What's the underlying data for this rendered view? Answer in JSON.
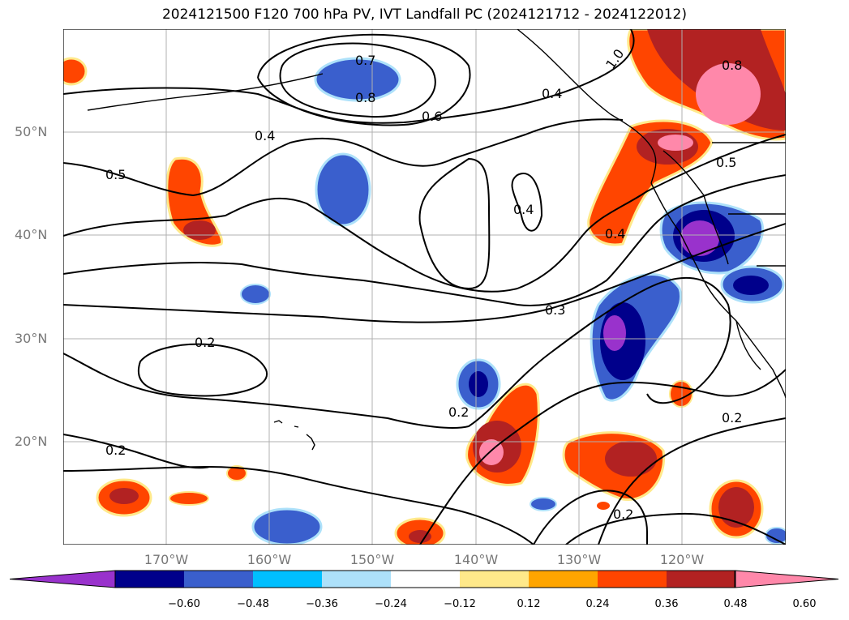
{
  "title": "2024121500 F120 700 hPa PV, IVT Landfall PC (2024121712 - 2024122012)",
  "map": {
    "lat_labels": [
      "50°N",
      "40°N",
      "30°N",
      "20°N"
    ],
    "lon_labels": [
      "170°W",
      "160°W",
      "150°W",
      "140°W",
      "130°W",
      "120°W"
    ],
    "contour_labels": [
      "0.7",
      "0.8",
      "0.6",
      "1.0",
      "0.8",
      "0.4",
      "0.5",
      "0.4",
      "0.4",
      "0.5",
      "0.4",
      "0.3",
      "0.2",
      "0.2",
      "0.2",
      "0.2",
      "0.2"
    ]
  },
  "colorbar": {
    "tick_labels": [
      "−0.60",
      "−0.48",
      "−0.36",
      "−0.24",
      "−0.12",
      "0.12",
      "0.24",
      "0.36",
      "0.48",
      "0.60"
    ],
    "colors": [
      "#9932CC",
      "#00008B",
      "#3A5FCD",
      "#00BFFF",
      "#ADE1FA",
      "#FFFFFF",
      "#FFE98A",
      "#FFA500",
      "#FF4500",
      "#B22222",
      "#FF88AA"
    ]
  }
}
